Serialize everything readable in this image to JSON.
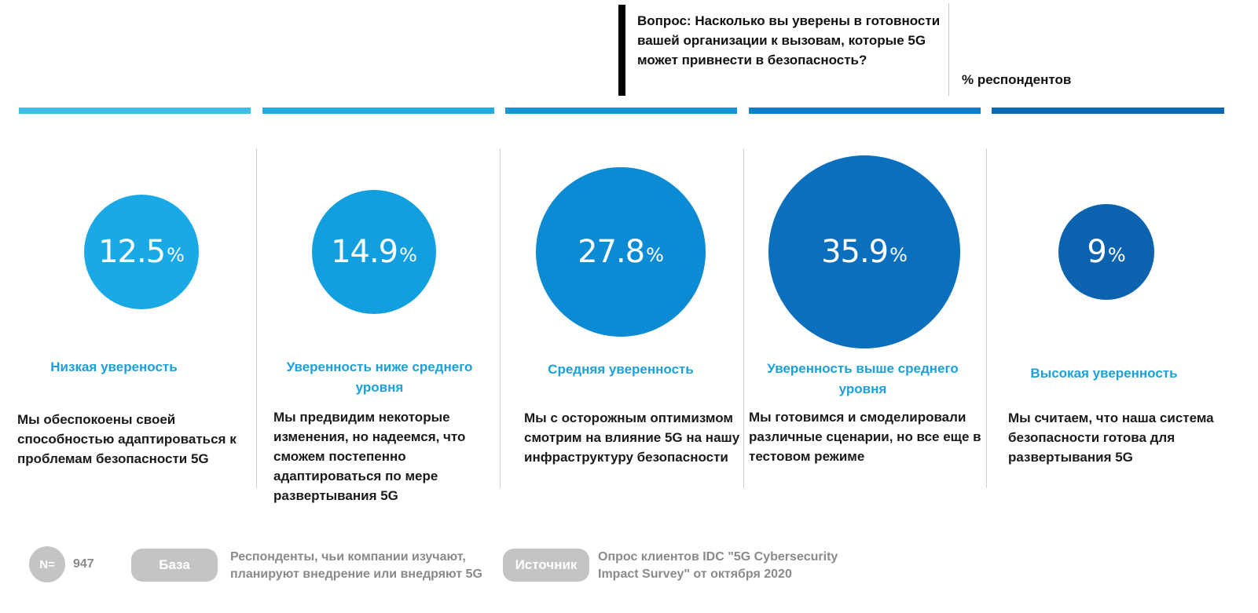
{
  "question": {
    "text": "Вопрос: Насколько вы уверены в готовности вашей организации к вызовам, которые 5G может привнести в безопасность?",
    "unit_label": "% респондентов"
  },
  "chart_data": {
    "type": "bubble",
    "categories": [
      "Низкая увереность",
      "Уверенность ниже среднего уровня",
      "Средняя уверенность",
      "Уверенность выше среднего уровня",
      "Высокая уверенность"
    ],
    "values": [
      12.5,
      14.9,
      27.8,
      35.9,
      9
    ],
    "value_labels": [
      "12.5",
      "14.9",
      "27.8",
      "35.9",
      "9"
    ],
    "unit": "%",
    "descriptions": [
      "Мы обеспокоены своей способностью адаптироваться к проблемам безопасности 5G",
      "Мы предвидим некоторые изменения, но надеемся, что сможем постепенно адаптироваться по мере развертывания 5G",
      "Мы с осторожным оптимизмом смотрим на влияние 5G на нашу инфраструктуру безопасности",
      "Мы готовимся и смоделировали различные сценарии, но все еще в тестовом режиме",
      "Мы считаем, что наша система безопасности готова для развертывания 5G"
    ],
    "colors": [
      "#19a9e6",
      "#119fe0",
      "#0b8bd4",
      "#0a6fbc",
      "#0b63b0"
    ],
    "stripe_colors": [
      "#3cbdea",
      "#24a9e0",
      "#1594d6",
      "#0e7dc8",
      "#0a68b4"
    ],
    "label_color": "#1aa0dc"
  },
  "footer": {
    "n_label": "N=",
    "n_value": "947",
    "base_label": "База",
    "base_text": "Респонденты, чьи компании изучают, планируют внедрение или внедряют 5G",
    "source_label": "Источник",
    "source_text": "Опрос клиентов IDC \"5G Cybersecurity Impact Survey\" от октября 2020"
  }
}
